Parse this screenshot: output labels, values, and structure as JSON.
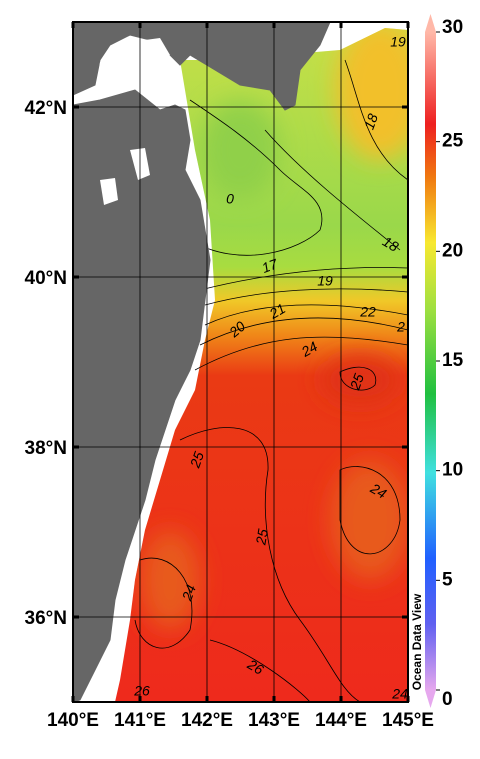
{
  "map": {
    "lon_range": [
      140,
      145
    ],
    "lat_range": [
      35,
      43
    ],
    "lon_ticks": [
      {
        "value": 140,
        "label": "140°E"
      },
      {
        "value": 141,
        "label": "141°E"
      },
      {
        "value": 142,
        "label": "142°E"
      },
      {
        "value": 143,
        "label": "143°E"
      },
      {
        "value": 144,
        "label": "144°E"
      },
      {
        "value": 145,
        "label": "145°E"
      }
    ],
    "lat_ticks": [
      {
        "value": 36,
        "label": "36°N"
      },
      {
        "value": 38,
        "label": "38°N"
      },
      {
        "value": 40,
        "label": "40°N"
      },
      {
        "value": 42,
        "label": "42°N"
      }
    ],
    "colorbar": {
      "range": [
        0,
        30
      ],
      "ticks": [
        0,
        5,
        10,
        15,
        20,
        25,
        30
      ]
    },
    "contour_labels": [
      19,
      18,
      18,
      0,
      17,
      19,
      20,
      21,
      22,
      2,
      24,
      25,
      25,
      24,
      25,
      24,
      26,
      26,
      24
    ],
    "credit": "Ocean Data View"
  }
}
